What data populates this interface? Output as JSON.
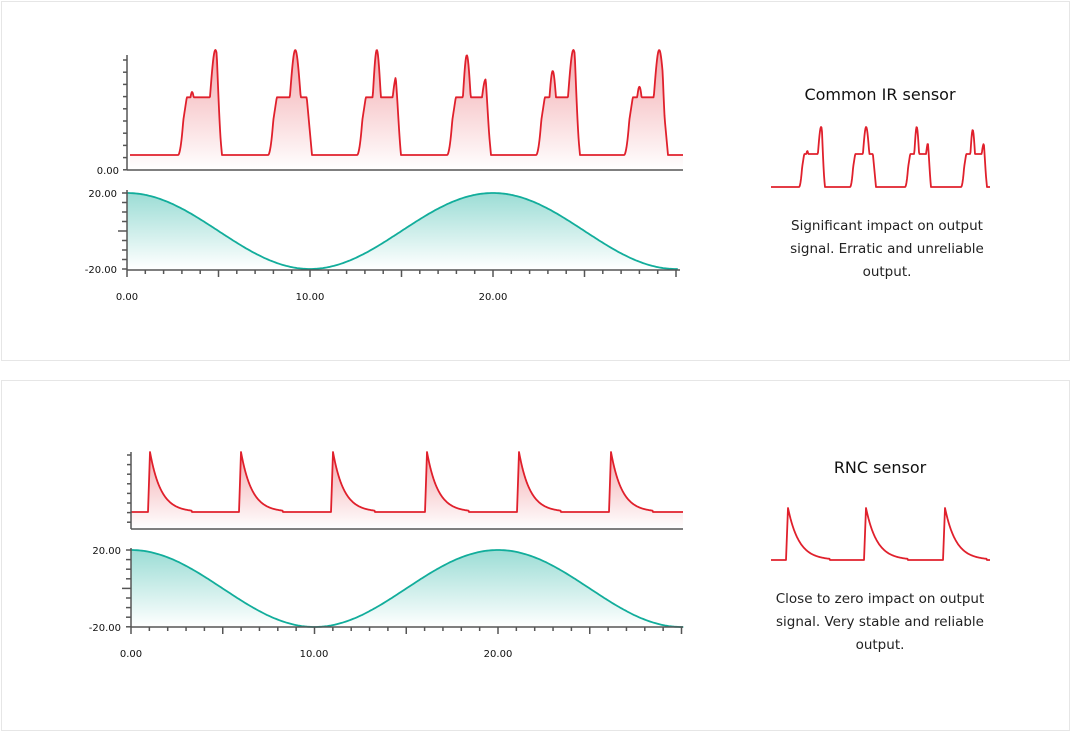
{
  "panels": [
    {
      "title": "Common IR sensor",
      "description": "Significant impact on output signal. Erratic and unreliable output.",
      "signal_type": "erratic-pulses",
      "pulse_count": 6
    },
    {
      "title": "RNC sensor",
      "description": "Close to zero impact on output signal. Very stable and reliable output.",
      "signal_type": "decaying-spikes",
      "pulse_count": 6
    }
  ],
  "chart_data": [
    {
      "type": "area",
      "series": [
        {
          "values": "output signal pulses",
          "color": "#e0202c"
        }
      ],
      "yticks": [
        "0.00"
      ]
    },
    {
      "type": "area",
      "x_ticks": [
        "0.00",
        "10.00",
        "20.00"
      ],
      "y_ticks": [
        "20.00",
        "-20.00"
      ],
      "xlim": [
        0,
        30
      ],
      "ylim": [
        -20,
        20
      ],
      "series": [
        {
          "function": "20*cos(2*pi*x/20)",
          "color": "#12ad9b"
        }
      ]
    }
  ],
  "colors": {
    "red": "#e0202c",
    "teal": "#12ad9b",
    "axis": "#555555"
  }
}
